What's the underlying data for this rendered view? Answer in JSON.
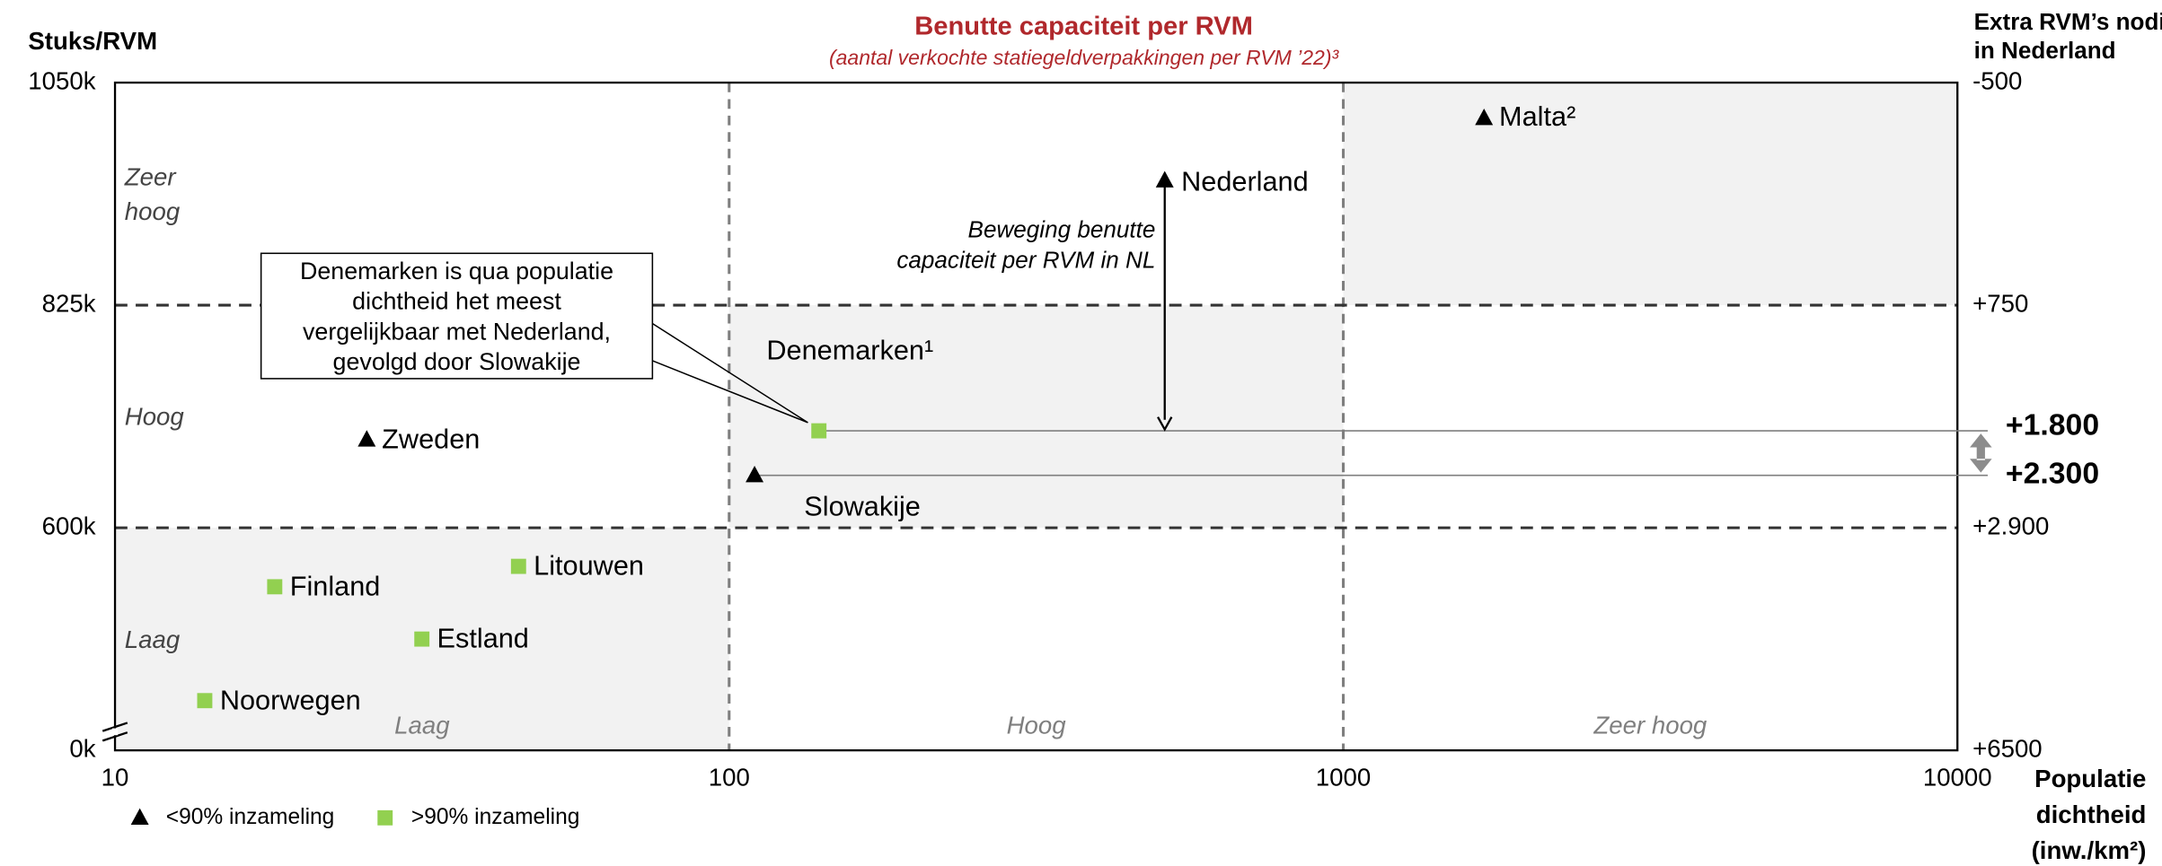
{
  "chart_data": {
    "type": "scatter",
    "title": "Benutte capaciteit per RVM",
    "subtitle": "(aantal verkochte statiegeldverpakkingen per RVM ’22)³",
    "y_label": "Stuks/RVM",
    "y2_label": [
      "Extra RVM’s nodig",
      "in Nederland"
    ],
    "x_label": [
      "Populatie",
      "dichtheid",
      "(inw./km²)"
    ],
    "xscale": "log",
    "xlim": [
      10,
      10000
    ],
    "xticks": [
      10,
      100,
      1000,
      10000
    ],
    "ylim": [
      0,
      1050000
    ],
    "yticks": [
      {
        "value": 0,
        "label": "0k"
      },
      {
        "value": 600000,
        "label": "600k"
      },
      {
        "value": 825000,
        "label": "825k"
      },
      {
        "value": 1050000,
        "label": "1050k"
      }
    ],
    "y2lim": [
      6500,
      -500
    ],
    "y2ticks": [
      {
        "value": 6500,
        "label": "+6500"
      },
      {
        "value": 2900,
        "label": "+2.900"
      },
      {
        "value": 750,
        "label": "+750"
      },
      {
        "value": -500,
        "label": "-500"
      }
    ],
    "grid": true,
    "legend": "bottom-left",
    "series": [
      {
        "name": "<90% inzameling",
        "color": "#000000",
        "marker": "triangle",
        "labels": [
          "Zweden",
          "Slowakije",
          "Nederland",
          "Malta²"
        ],
        "x": [
          25.7,
          110,
          512,
          1695
        ],
        "values": [
          689000,
          653000,
          951000,
          1014000
        ]
      },
      {
        "name": ">90% inzameling",
        "color": "#92d050",
        "marker": "square",
        "labels": [
          "Denemarken¹",
          "Finland",
          "Litouwen",
          "Estland",
          "Noorwegen"
        ],
        "x": [
          140,
          18.2,
          45.4,
          31.6,
          14
        ],
        "values": [
          698000,
          441000,
          496000,
          300000,
          134000
        ]
      }
    ],
    "y_regions": [
      "Laag",
      "Hoog",
      "Zeer hoog"
    ],
    "x_regions": [
      "Laag",
      "Hoog",
      "Zeer hoog"
    ],
    "callout": [
      "Denemarken is qua populatie",
      "dichtheid het meest",
      "vergelijkbaar met Nederland,",
      "gevolgd door Slowakije"
    ],
    "arrow_label": [
      "Beweging benutte",
      "capaciteit per RVM in NL"
    ],
    "deltas": [
      "+1.800",
      "+2.300"
    ]
  }
}
